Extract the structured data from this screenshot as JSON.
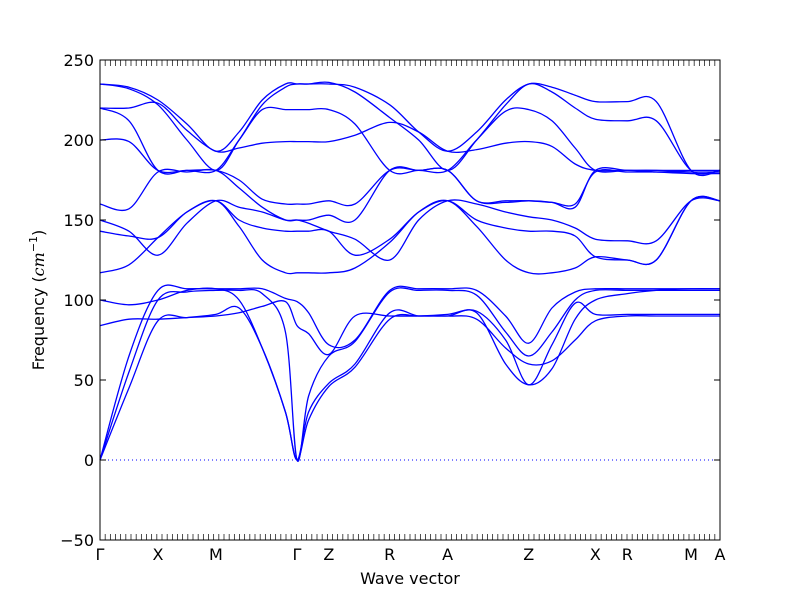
{
  "chart_data": {
    "type": "line",
    "xlabel": "Wave vector",
    "ylabel": "Frequency ($cm^{-1}$)",
    "ylabel_text": "Frequency (",
    "ylabel_unit": "cm",
    "ylabel_exp": "−1",
    "ylabel_close": ")",
    "ylim": [
      -50,
      250
    ],
    "yticks": [
      -50,
      0,
      50,
      100,
      150,
      200,
      250
    ],
    "ytick_labels": [
      "−50",
      "0",
      "50",
      "100",
      "150",
      "200",
      "250"
    ],
    "xlim": [
      0,
      10.7
    ],
    "high_symmetry_points": [
      {
        "label": "Γ",
        "x": 0
      },
      {
        "label": "X",
        "x": 1.0
      },
      {
        "label": "M",
        "x": 2.0
      },
      {
        "label": "Γ",
        "x": 3.4
      },
      {
        "label": "Z",
        "x": 3.95
      },
      {
        "label": "R",
        "x": 5.0
      },
      {
        "label": "A",
        "x": 6.0
      },
      {
        "label": "Z",
        "x": 7.4
      },
      {
        "label": "X",
        "x": 8.55
      },
      {
        "label": "R",
        "x": 9.1
      },
      {
        "label": "M",
        "x": 10.2
      },
      {
        "label": "A",
        "x": 10.7
      }
    ],
    "zero_line": {
      "y": 0,
      "style": "dotted"
    },
    "grid": false,
    "color": "#0000ff",
    "series": [
      {
        "x": [
          0,
          0.5,
          1.0,
          1.5,
          2.0,
          2.4,
          2.8,
          3.2,
          3.4,
          3.6,
          3.95,
          4.4,
          5.0,
          5.5,
          6.0,
          6.5,
          7.0,
          7.4,
          7.8,
          8.2,
          8.55,
          9.1,
          9.6,
          10.2,
          10.7
        ],
        "y": [
          0,
          65,
          106,
          107,
          107,
          107,
          107,
          101,
          99,
          92,
          72,
          75,
          106,
          107,
          107,
          106,
          90,
          73,
          95,
          105,
          107,
          107,
          107,
          107,
          107
        ]
      },
      {
        "x": [
          0,
          0.5,
          1.0,
          1.5,
          2.0,
          2.4,
          2.8,
          3.2,
          3.4,
          3.6,
          3.95,
          4.4,
          5.0,
          5.5,
          6.0,
          6.5,
          7.0,
          7.4,
          7.8,
          8.2,
          8.55,
          9.1,
          9.6,
          10.2,
          10.7
        ],
        "y": [
          0,
          55,
          100,
          105,
          106,
          106,
          104,
          80,
          0,
          40,
          65,
          74,
          105,
          106,
          106,
          103,
          80,
          65,
          80,
          100,
          106,
          106,
          106,
          106,
          106
        ]
      },
      {
        "x": [
          0,
          0.5,
          1.0,
          1.5,
          2.0,
          2.4,
          2.8,
          3.2,
          3.4,
          3.6,
          3.95,
          4.4,
          5.0,
          5.5,
          6.0,
          6.5,
          7.0,
          7.4,
          7.8,
          8.2,
          8.55,
          9.1,
          9.6,
          10.2,
          10.7
        ],
        "y": [
          0,
          45,
          87,
          89,
          91,
          95,
          70,
          30,
          0,
          30,
          48,
          60,
          92,
          90,
          90,
          88,
          70,
          60,
          62,
          75,
          87,
          90,
          90,
          90,
          90
        ]
      },
      {
        "x": [
          0,
          0.5,
          1.0,
          1.5,
          2.0,
          2.4,
          2.8,
          3.2,
          3.4,
          3.6,
          3.95,
          4.4,
          5.0,
          5.5,
          6.0,
          6.5,
          7.0,
          7.4,
          7.8,
          8.2,
          8.55,
          9.1,
          9.6,
          10.2,
          10.7
        ],
        "y": [
          100,
          97,
          100,
          106,
          107,
          100,
          70,
          30,
          0,
          25,
          46,
          58,
          88,
          90,
          90,
          92,
          60,
          47,
          57,
          88,
          100,
          104,
          106,
          107,
          107
        ]
      },
      {
        "x": [
          0,
          0.5,
          1.0,
          1.5,
          2.0,
          2.4,
          2.8,
          3.2,
          3.4,
          3.6,
          3.95,
          4.4,
          5.0,
          5.5,
          6.0,
          6.5,
          7.0,
          7.4,
          7.8,
          8.2,
          8.55,
          9.1,
          9.6,
          10.2,
          10.7
        ],
        "y": [
          84,
          88,
          88,
          89,
          90,
          92,
          96,
          99,
          84,
          79,
          66,
          90,
          90,
          90,
          91,
          93,
          75,
          47,
          72,
          98,
          91,
          91,
          91,
          91,
          91
        ]
      },
      {
        "x": [
          0,
          0.5,
          1.0,
          1.5,
          2.0,
          2.4,
          2.8,
          3.2,
          3.4,
          3.6,
          3.95,
          4.4,
          5.0,
          5.5,
          6.0,
          6.5,
          7.0,
          7.4,
          7.8,
          8.2,
          8.55,
          9.1,
          9.6,
          10.2,
          10.7
        ],
        "y": [
          235,
          233,
          225,
          210,
          193,
          205,
          225,
          235,
          235,
          235,
          235,
          233,
          222,
          205,
          193,
          205,
          225,
          235,
          233,
          228,
          224,
          224,
          224,
          181,
          181
        ]
      },
      {
        "x": [
          0,
          0.5,
          1.0,
          1.5,
          2.0,
          2.4,
          2.8,
          3.2,
          3.4,
          3.6,
          3.95,
          4.4,
          5.0,
          5.5,
          6.0,
          6.5,
          7.0,
          7.4,
          7.8,
          8.2,
          8.55,
          9.1,
          9.6,
          10.2,
          10.7
        ],
        "y": [
          235,
          232,
          222,
          200,
          181,
          200,
          222,
          233,
          235,
          235,
          236,
          230,
          214,
          200,
          181,
          200,
          222,
          235,
          230,
          220,
          213,
          212,
          212,
          181,
          181
        ]
      },
      {
        "x": [
          0,
          0.5,
          1.0,
          1.5,
          2.0,
          2.4,
          2.8,
          3.2,
          3.4,
          3.6,
          3.95,
          4.4,
          5.0,
          5.5,
          6.0,
          6.5,
          7.0,
          7.4,
          7.8,
          8.2,
          8.55,
          9.1,
          9.6,
          10.2,
          10.7
        ],
        "y": [
          220,
          220,
          223,
          206,
          193,
          195,
          198,
          199,
          199,
          199,
          199,
          203,
          211,
          205,
          193,
          194,
          198,
          199,
          196,
          185,
          181,
          181,
          180,
          179,
          179
        ]
      },
      {
        "x": [
          0,
          0.5,
          1.0,
          1.5,
          2.0,
          2.4,
          2.8,
          3.2,
          3.4,
          3.6,
          3.95,
          4.4,
          5.0,
          5.5,
          6.0,
          6.5,
          7.0,
          7.4,
          7.8,
          8.2,
          8.55,
          9.1,
          9.6,
          10.2,
          10.7
        ],
        "y": [
          220,
          212,
          181,
          181,
          181,
          200,
          219,
          219,
          219,
          219,
          219,
          210,
          181,
          181,
          181,
          200,
          218,
          219,
          212,
          195,
          181,
          181,
          181,
          180,
          180
        ]
      },
      {
        "x": [
          0,
          0.5,
          1.0,
          1.5,
          2.0,
          2.4,
          2.8,
          3.2,
          3.4,
          3.6,
          3.95,
          4.4,
          5.0,
          5.5,
          6.0,
          6.5,
          7.0,
          7.4,
          7.8,
          8.2,
          8.55,
          9.1,
          9.6,
          10.2,
          10.7
        ],
        "y": [
          200,
          199,
          181,
          181,
          181,
          175,
          163,
          160,
          160,
          160,
          162,
          160,
          181,
          181,
          181,
          162,
          161,
          162,
          161,
          158,
          181,
          181,
          181,
          181,
          181
        ]
      },
      {
        "x": [
          0,
          0.5,
          1.0,
          1.5,
          2.0,
          2.4,
          2.8,
          3.2,
          3.4,
          3.6,
          3.95,
          4.4,
          5.0,
          5.5,
          6.0,
          6.5,
          7.0,
          7.4,
          7.8,
          8.2,
          8.55,
          9.1,
          9.6,
          10.2,
          10.7
        ],
        "y": [
          160,
          157,
          180,
          180,
          181,
          170,
          158,
          150,
          150,
          150,
          153,
          150,
          181,
          181,
          181,
          162,
          162,
          162,
          161,
          160,
          180,
          180,
          180,
          180,
          180
        ]
      },
      {
        "x": [
          0,
          0.5,
          1.0,
          1.5,
          2.0,
          2.4,
          2.8,
          3.2,
          3.4,
          3.6,
          3.95,
          4.4,
          5.0,
          5.5,
          6.0,
          6.5,
          7.0,
          7.4,
          7.8,
          8.2,
          8.55,
          9.1,
          9.6,
          10.2,
          10.7
        ],
        "y": [
          150,
          143,
          128,
          148,
          162,
          158,
          155,
          150,
          150,
          148,
          143,
          138,
          125,
          150,
          162,
          160,
          155,
          152,
          150,
          145,
          138,
          137,
          137,
          162,
          162
        ]
      },
      {
        "x": [
          0,
          0.5,
          1.0,
          1.5,
          2.0,
          2.4,
          2.8,
          3.2,
          3.4,
          3.6,
          3.95,
          4.4,
          5.0,
          5.5,
          6.0,
          6.5,
          7.0,
          7.4,
          7.8,
          8.2,
          8.55,
          9.1,
          9.6,
          10.2,
          10.7
        ],
        "y": [
          143,
          140,
          139,
          155,
          162,
          150,
          145,
          143,
          143,
          143,
          143,
          128,
          138,
          155,
          162,
          150,
          145,
          143,
          143,
          140,
          127,
          125,
          125,
          162,
          162
        ]
      },
      {
        "x": [
          0,
          0.5,
          1.0,
          1.5,
          2.0,
          2.4,
          2.8,
          3.2,
          3.4,
          3.6,
          3.95,
          4.4,
          5.0,
          5.5,
          6.0,
          6.5,
          7.0,
          7.4,
          7.8,
          8.2,
          8.55,
          9.1,
          9.6,
          10.2,
          10.7
        ],
        "y": [
          117,
          122,
          139,
          155,
          162,
          146,
          125,
          117,
          117,
          117,
          117,
          120,
          136,
          155,
          162,
          146,
          125,
          117,
          117,
          120,
          127,
          125,
          125,
          162,
          162
        ]
      }
    ]
  }
}
